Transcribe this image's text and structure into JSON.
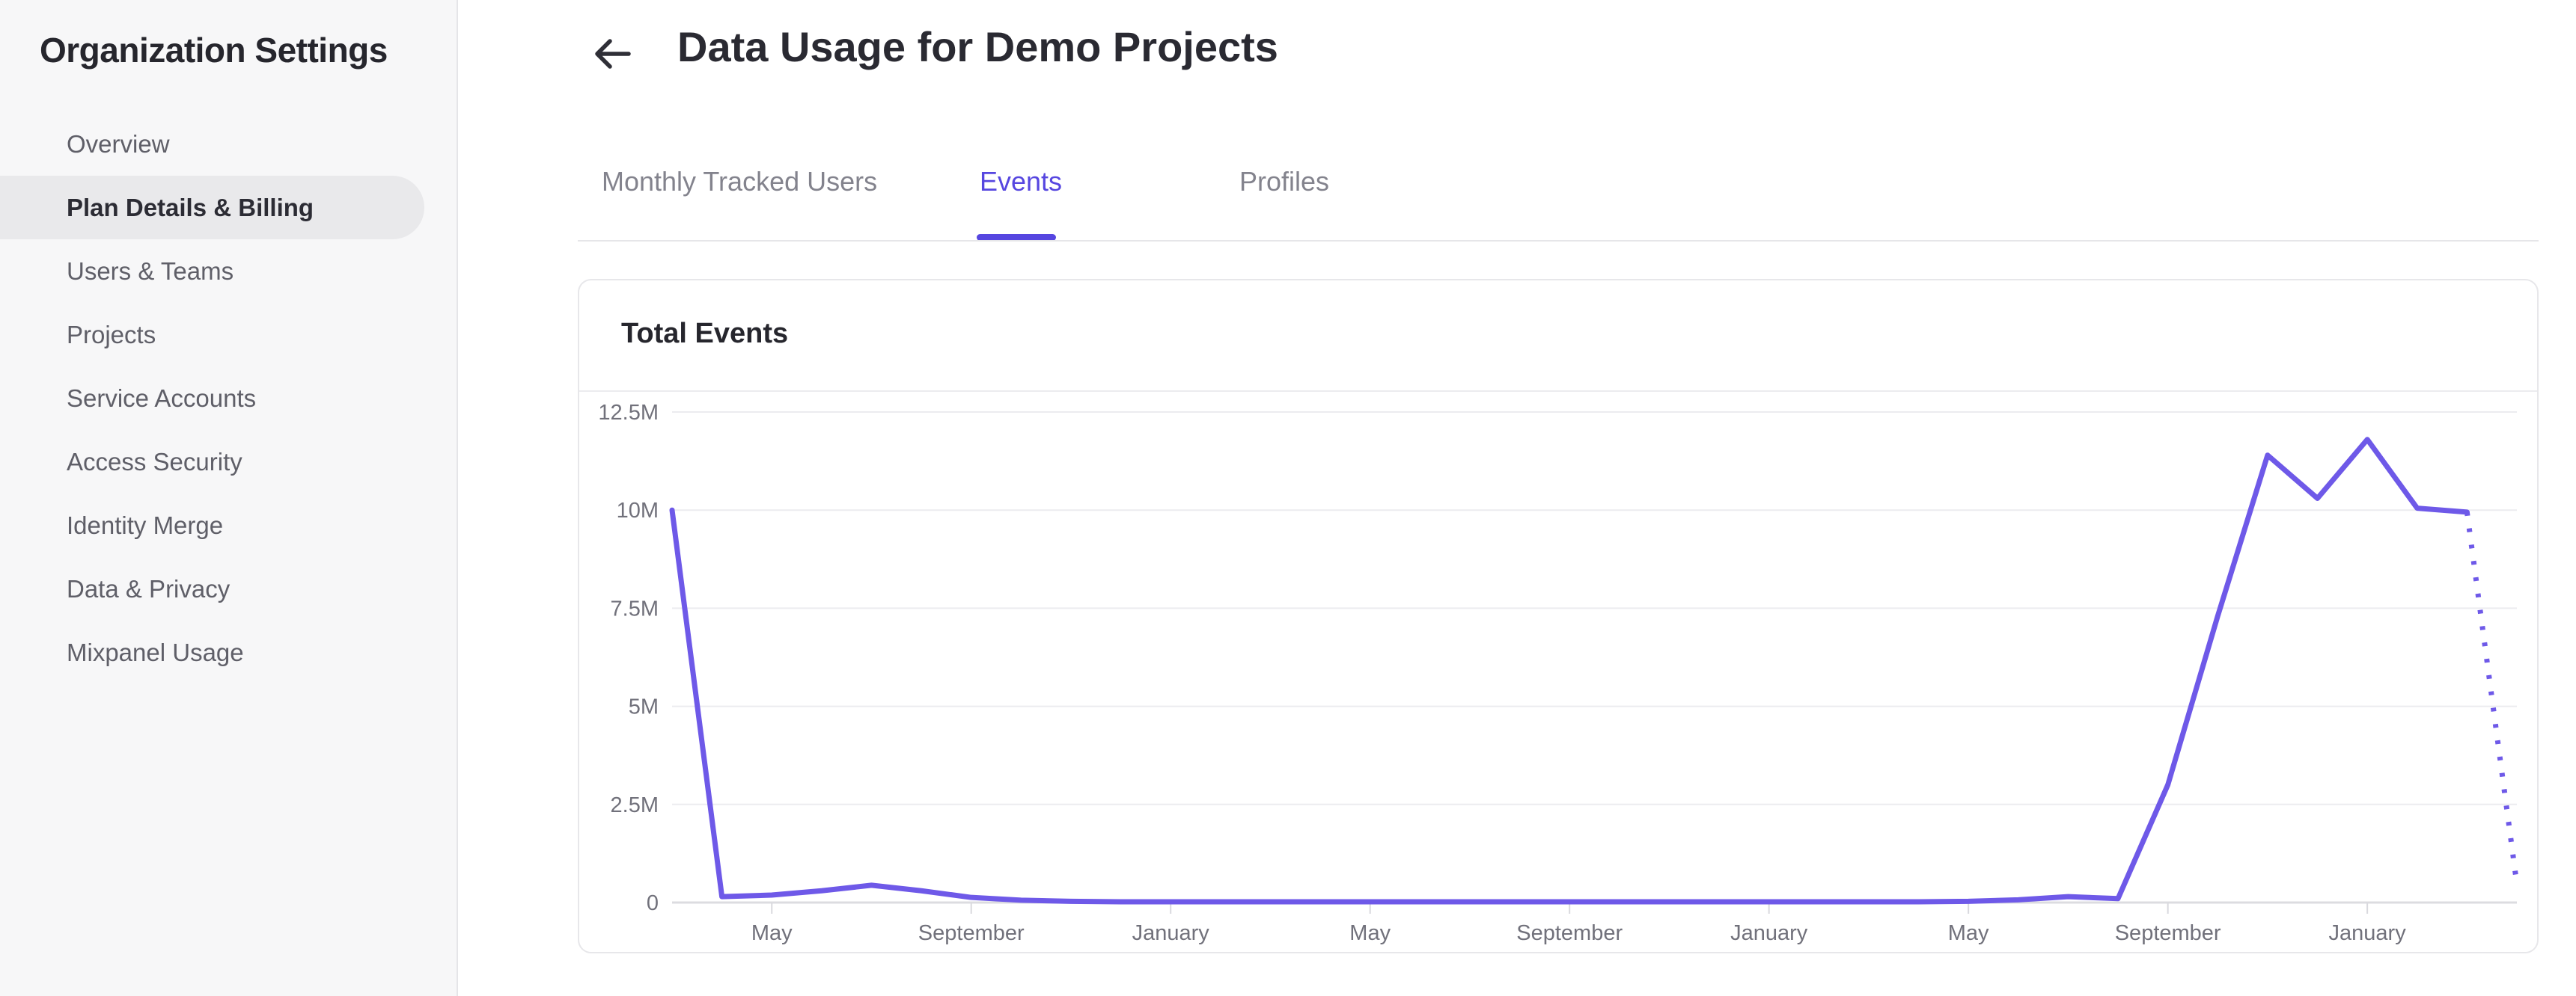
{
  "sidebar": {
    "title": "Organization Settings",
    "items": [
      {
        "label": "Overview",
        "active": false
      },
      {
        "label": "Plan Details & Billing",
        "active": true
      },
      {
        "label": "Users & Teams",
        "active": false
      },
      {
        "label": "Projects",
        "active": false
      },
      {
        "label": "Service Accounts",
        "active": false
      },
      {
        "label": "Access Security",
        "active": false
      },
      {
        "label": "Identity Merge",
        "active": false
      },
      {
        "label": "Data & Privacy",
        "active": false
      },
      {
        "label": "Mixpanel Usage",
        "active": false
      }
    ]
  },
  "header": {
    "back_icon": "arrow-left-icon",
    "title": "Data Usage for Demo Projects"
  },
  "tabs": [
    {
      "label": "Monthly Tracked Users",
      "active": false
    },
    {
      "label": "Events",
      "active": true
    },
    {
      "label": "Profiles",
      "active": false
    }
  ],
  "card": {
    "title": "Total Events"
  },
  "colors": {
    "accent": "#5646E0",
    "line": "#6E59E8",
    "gridline": "#ececef",
    "axis_line": "#dcdce0",
    "tick": "#d9d9de",
    "axis_text": "#71717b"
  },
  "chart_data": {
    "type": "line",
    "title": "Total Events",
    "unit": "millions of events",
    "series_name": "Total Events",
    "points_are_monthly": true,
    "values": [
      10,
      0.15,
      0.19,
      0.3,
      0.44,
      0.3,
      0.13,
      0.06,
      0.03,
      0.02,
      0.02,
      0.02,
      0.02,
      0.02,
      0.02,
      0.02,
      0.02,
      0.02,
      0.02,
      0.02,
      0.02,
      0.02,
      0.02,
      0.02,
      0.02,
      0.02,
      0.03,
      0.07,
      0.15,
      0.1,
      3.0,
      7.3,
      11.4,
      10.3,
      11.8,
      10.05,
      9.95,
      0.47
    ],
    "last_segment_dotted": true,
    "ylim": [
      0,
      12.5
    ],
    "yticks": [
      {
        "value": 0,
        "label": "0"
      },
      {
        "value": 2.5,
        "label": "2.5M"
      },
      {
        "value": 5,
        "label": "5M"
      },
      {
        "value": 7.5,
        "label": "7.5M"
      },
      {
        "value": 10,
        "label": "10M"
      },
      {
        "value": 12.5,
        "label": "12.5M"
      }
    ],
    "xticks": [
      {
        "index": 2,
        "label": "May"
      },
      {
        "index": 6,
        "label": "September"
      },
      {
        "index": 10,
        "label": "January"
      },
      {
        "index": 14,
        "label": "May"
      },
      {
        "index": 18,
        "label": "September"
      },
      {
        "index": 22,
        "label": "January"
      },
      {
        "index": 26,
        "label": "May"
      },
      {
        "index": 30,
        "label": "September"
      },
      {
        "index": 34,
        "label": "January"
      }
    ],
    "grid": true,
    "legend": "none"
  }
}
